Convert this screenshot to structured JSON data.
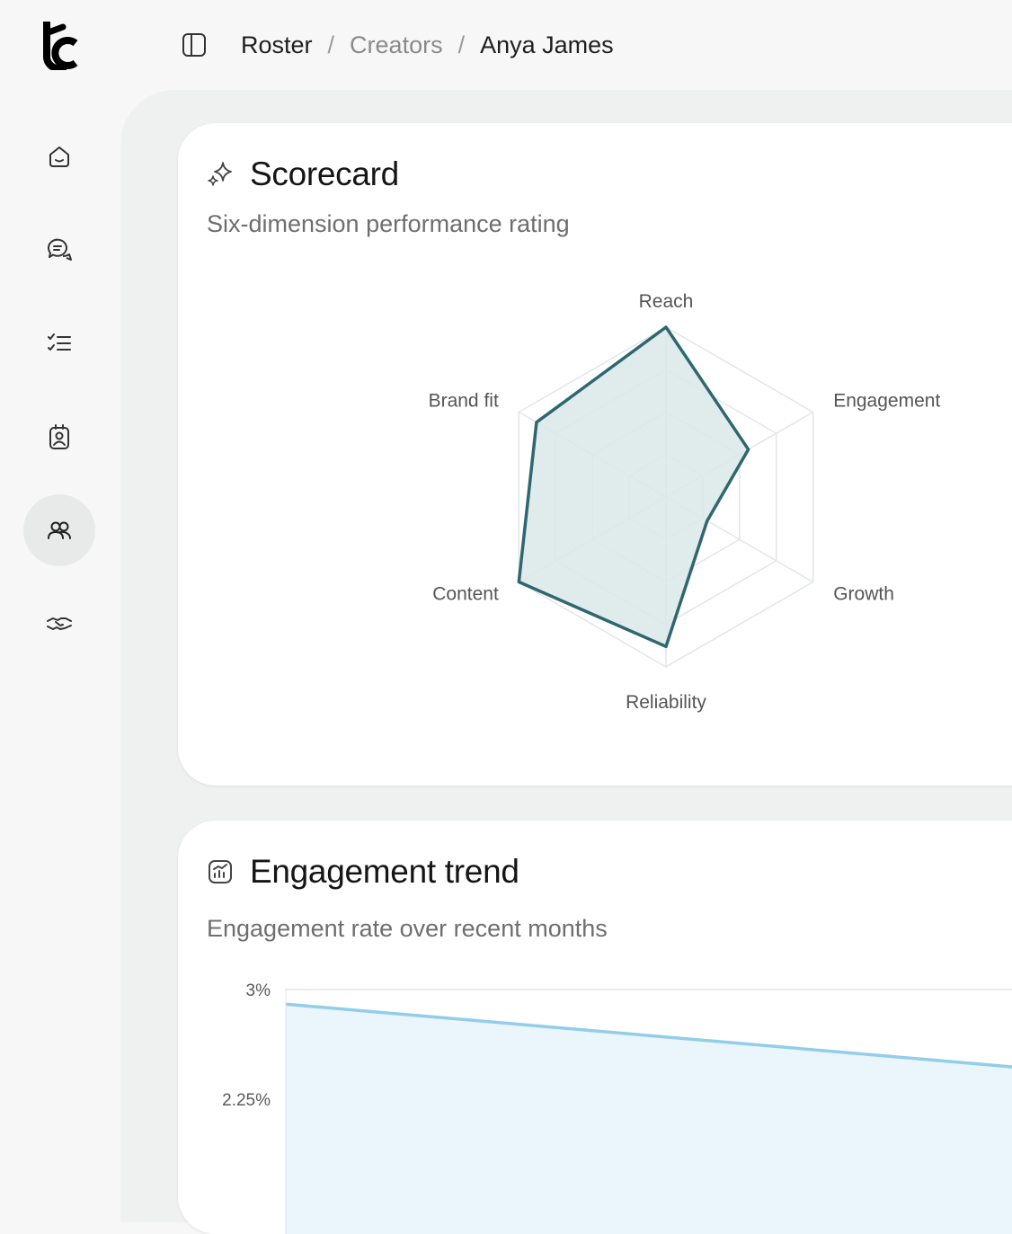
{
  "app": {
    "logo_icon": "brand-logo"
  },
  "breadcrumb": {
    "items": [
      "Roster",
      "Creators",
      "Anya James"
    ],
    "separator": "/"
  },
  "nav": {
    "items": [
      {
        "icon": "home-icon",
        "active": false
      },
      {
        "icon": "chat-icon",
        "active": false
      },
      {
        "icon": "checklist-icon",
        "active": false
      },
      {
        "icon": "id-badge-icon",
        "active": false
      },
      {
        "icon": "users-icon",
        "active": true
      },
      {
        "icon": "handshake-icon",
        "active": false
      }
    ]
  },
  "scorecard": {
    "title": "Scorecard",
    "subtitle": "Six-dimension performance rating",
    "icon": "sparkle-icon"
  },
  "trend": {
    "title": "Engagement trend",
    "subtitle": "Engagement rate over recent months",
    "icon": "chart-icon"
  },
  "colors": {
    "radar_stroke": "#2e6770",
    "radar_fill": "#dae7e9",
    "grid": "#e3e6e6",
    "trend_line": "#93cde9",
    "trend_fill": "#eaf5fc"
  },
  "chart_data": [
    {
      "type": "radar",
      "axes": [
        "Reach",
        "Engagement",
        "Growth",
        "Reliability",
        "Content",
        "Brand fit"
      ],
      "values": [
        100,
        56,
        28,
        88,
        100,
        88
      ],
      "max": 100,
      "grid_levels": 4
    },
    {
      "type": "area",
      "y_tick_labels": [
        "3%",
        "2.25%"
      ],
      "y_ticks": [
        3,
        2.25
      ],
      "values": [
        2.9,
        2.47
      ],
      "grid": true
    }
  ]
}
